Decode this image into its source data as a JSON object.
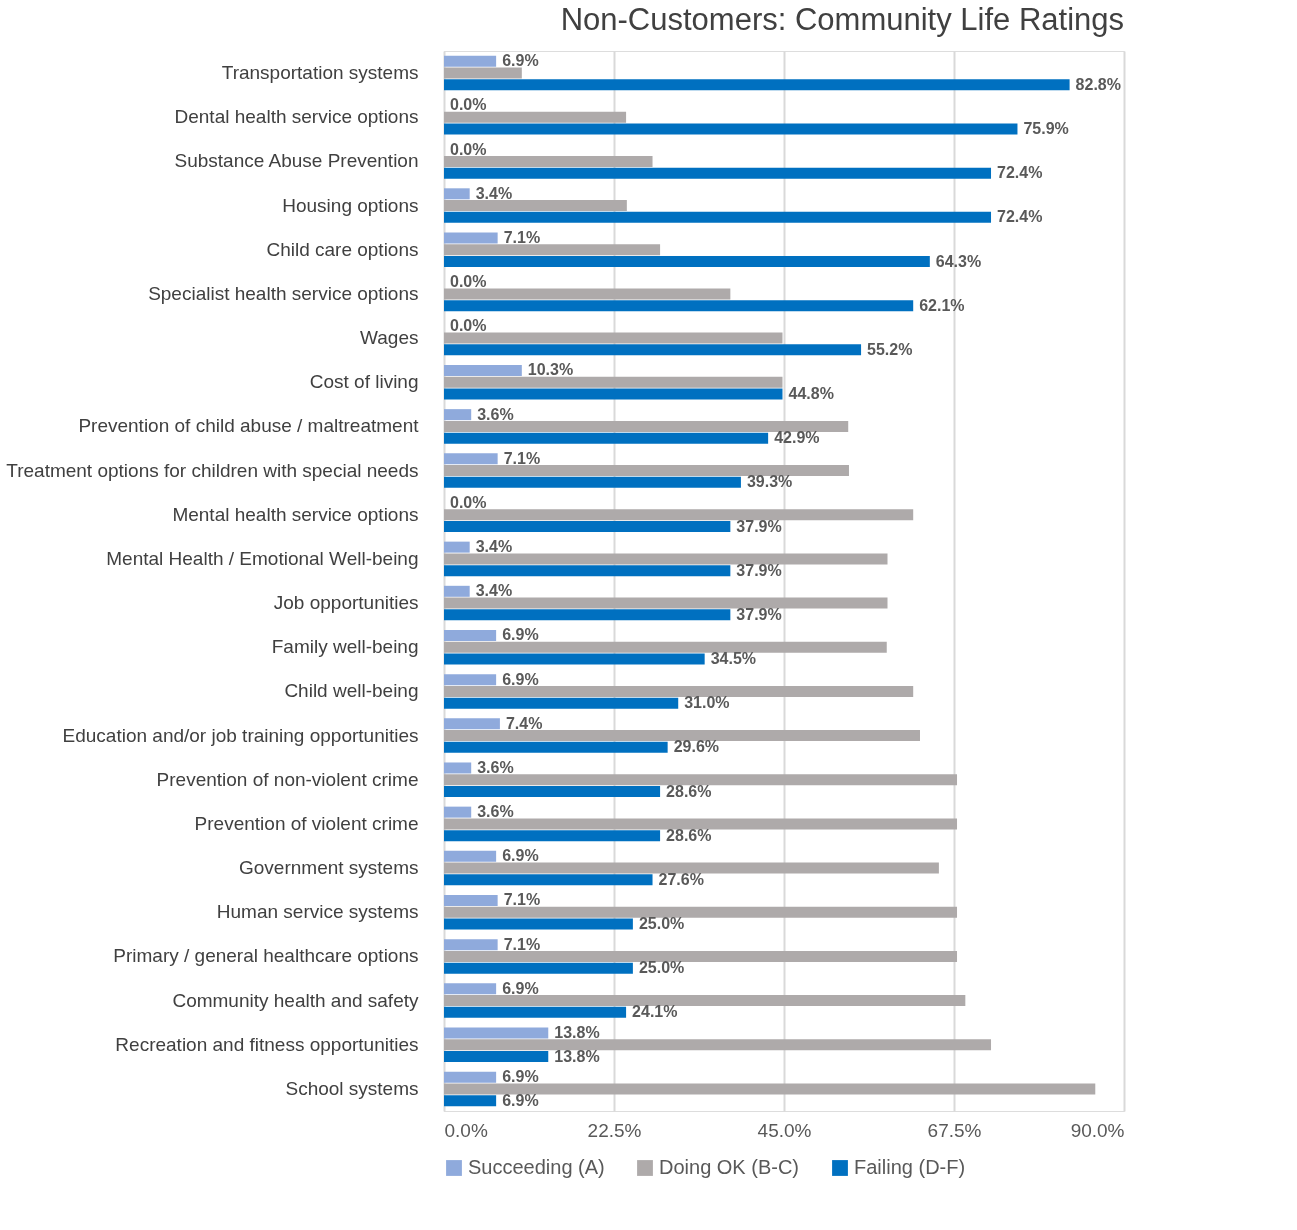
{
  "chart_data": {
    "type": "bar",
    "orientation": "horizontal",
    "title": "Non-Customers: Community Life Ratings",
    "categories": [
      "Transportation systems",
      "Dental health service options",
      "Substance Abuse Prevention",
      "Housing options",
      "Child care options",
      "Specialist health service options",
      "Wages",
      "Cost of living",
      "Prevention of child abuse / maltreatment",
      "Treatment options for children with special needs",
      "Mental health service options",
      "Mental Health / Emotional Well-being",
      "Job opportunities",
      "Family well-being",
      "Child well-being",
      "Education and/or job training opportunities",
      "Prevention of non-violent crime",
      "Prevention of violent crime",
      "Government systems",
      "Human service systems",
      "Primary / general healthcare options",
      "Community health and safety",
      "Recreation and fitness opportunities",
      "School systems"
    ],
    "series": [
      {
        "name": "Succeeding (A)",
        "color": "#8faadc",
        "values": [
          6.9,
          0.0,
          0.0,
          3.4,
          7.1,
          0.0,
          0.0,
          10.3,
          3.6,
          7.1,
          0.0,
          3.4,
          3.4,
          6.9,
          6.9,
          7.4,
          3.6,
          3.6,
          6.9,
          7.1,
          7.1,
          6.9,
          13.8,
          6.9
        ],
        "value_labels": [
          "6.9%",
          "0.0%",
          "0.0%",
          "3.4%",
          "7.1%",
          "0.0%",
          "0.0%",
          "10.3%",
          "3.6%",
          "7.1%",
          "0.0%",
          "3.4%",
          "3.4%",
          "6.9%",
          "6.9%",
          "7.4%",
          "3.6%",
          "3.6%",
          "6.9%",
          "7.1%",
          "7.1%",
          "6.9%",
          "13.8%",
          "6.9%"
        ]
      },
      {
        "name": "Doing OK (B-C)",
        "color": "#aeaaaa",
        "values": [
          10.3,
          24.1,
          27.6,
          24.2,
          28.6,
          37.9,
          44.8,
          44.8,
          53.5,
          53.6,
          62.1,
          58.7,
          58.7,
          58.6,
          62.1,
          63.0,
          67.9,
          67.9,
          65.5,
          67.9,
          67.9,
          69.0,
          72.4,
          86.2
        ]
      },
      {
        "name": "Failing (D-F)",
        "color": "#0070c0",
        "values": [
          82.8,
          75.9,
          72.4,
          72.4,
          64.3,
          62.1,
          55.2,
          44.8,
          42.9,
          39.3,
          37.9,
          37.9,
          37.9,
          34.5,
          31.0,
          29.6,
          28.6,
          28.6,
          27.6,
          25.0,
          25.0,
          24.1,
          13.8,
          6.9
        ],
        "value_labels": [
          "82.8%",
          "75.9%",
          "72.4%",
          "72.4%",
          "64.3%",
          "62.1%",
          "55.2%",
          "44.8%",
          "42.9%",
          "39.3%",
          "37.9%",
          "37.9%",
          "37.9%",
          "34.5%",
          "31.0%",
          "29.6%",
          "28.6%",
          "28.6%",
          "27.6%",
          "25.0%",
          "25.0%",
          "24.1%",
          "13.8%",
          "6.9%"
        ]
      }
    ],
    "xlim": [
      0,
      90
    ],
    "xticks": [
      {
        "value": 0,
        "label": "0.0%"
      },
      {
        "value": 22.5,
        "label": "22.5%"
      },
      {
        "value": 45,
        "label": "45.0%"
      },
      {
        "value": 67.5,
        "label": "67.5%"
      },
      {
        "value": 90,
        "label": "90.0%"
      }
    ],
    "grid": "x",
    "legend": "bottom"
  }
}
